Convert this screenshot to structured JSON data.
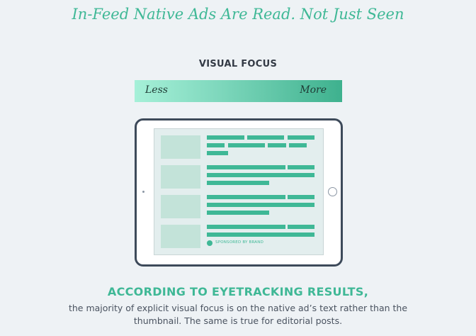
{
  "title": "In-Feed Native Ads Are Read. Not Just Seen",
  "visual_focus": {
    "label": "VISUAL FOCUS",
    "less": "Less",
    "more": "More"
  },
  "tablet": {
    "sponsored_label": "SPONSORED BY BRAND"
  },
  "result": {
    "heading": "ACCORDING TO EYETRACKING RESULTS,",
    "body": "the majority of explicit visual focus is on the native ad’s text rather than the thumbnail. The same is true for editorial posts."
  },
  "colors": {
    "accent": "#3fb896",
    "background": "#eef2f5",
    "frame": "#3d4a5a",
    "thumbnail": "#c3e3d9"
  }
}
